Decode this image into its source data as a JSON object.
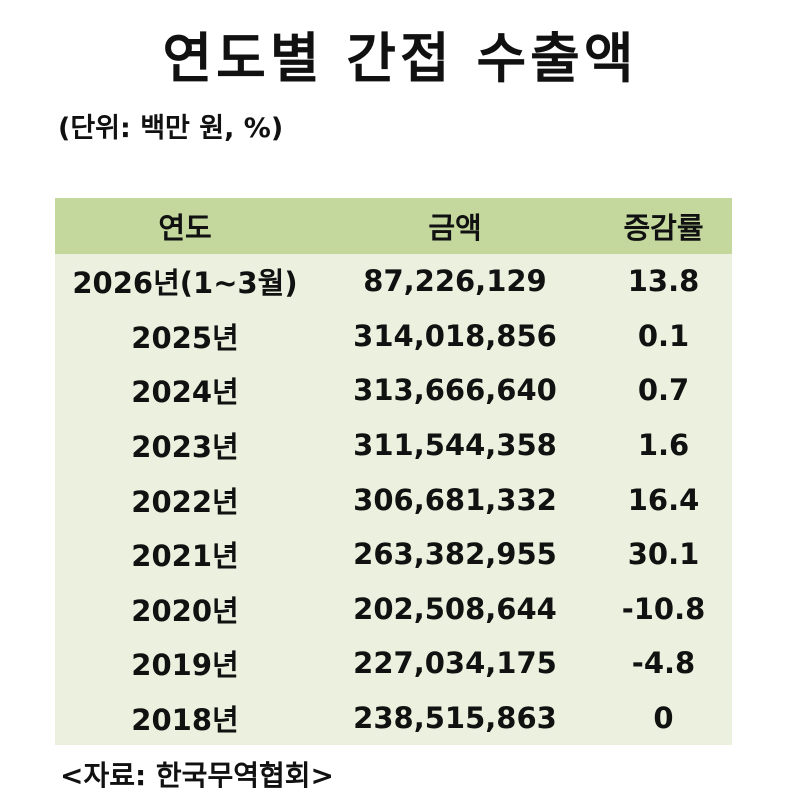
{
  "header": {
    "title": "연도별 간접 수출액",
    "unit": "(단위: 백만 원, %)"
  },
  "table": {
    "columns": [
      "연도",
      "금액",
      "증감률"
    ],
    "rows": [
      [
        "2026년(1~3월)",
        "87,226,129",
        "13.8"
      ],
      [
        "2025년",
        "314,018,856",
        "0.1"
      ],
      [
        "2024년",
        "313,666,640",
        "0.7"
      ],
      [
        "2023년",
        "311,544,358",
        "1.6"
      ],
      [
        "2022년",
        "306,681,332",
        "16.4"
      ],
      [
        "2021년",
        "263,382,955",
        "30.1"
      ],
      [
        "2020년",
        "202,508,644",
        "-10.8"
      ],
      [
        "2019년",
        "227,034,175",
        "-4.8"
      ],
      [
        "2018년",
        "238,515,863",
        "0"
      ]
    ]
  },
  "footer": {
    "source": "<자료: 한국무역협회>"
  }
}
